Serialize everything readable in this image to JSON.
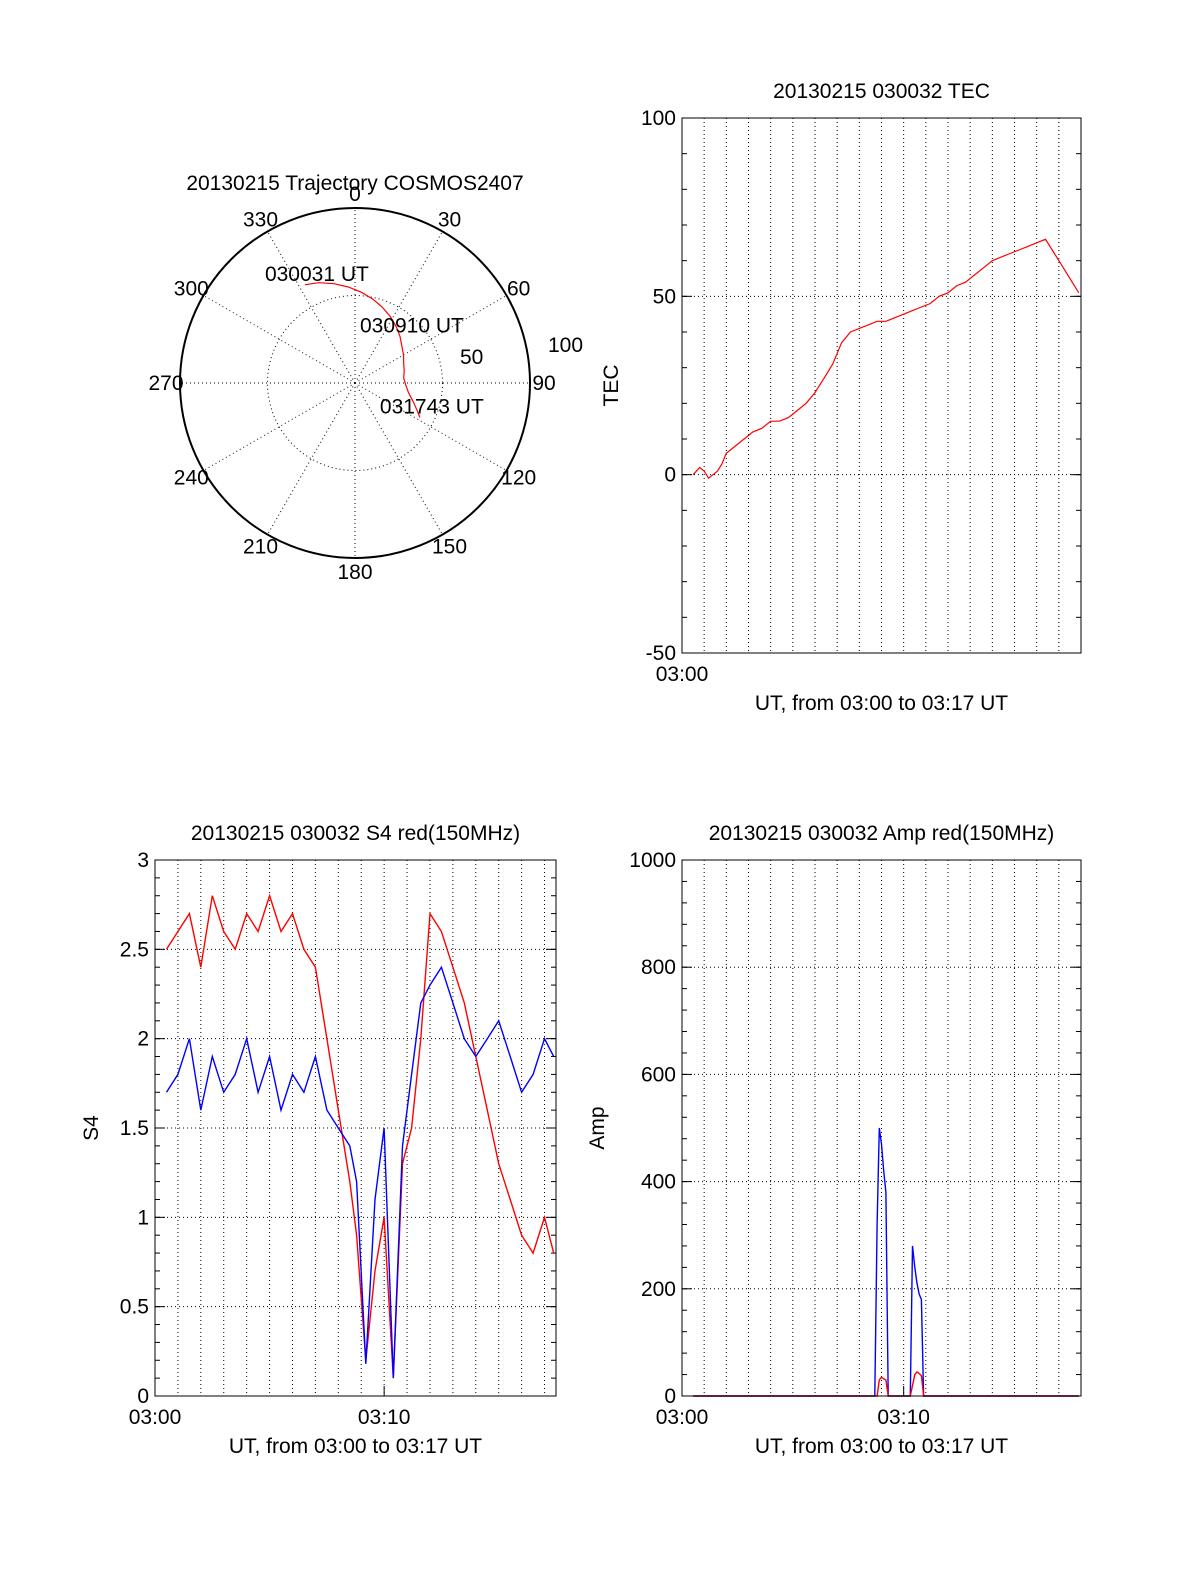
{
  "chart_data": [
    {
      "type": "polar",
      "title": "20130215 Trajectory COSMOS2407",
      "azimuth_labels": [
        "0",
        "30",
        "60",
        "90",
        "120",
        "150",
        "180",
        "210",
        "240",
        "270",
        "300",
        "330"
      ],
      "radial_labels": [
        "50",
        "100"
      ],
      "rlim": [
        0,
        100
      ],
      "grid": true,
      "series": [
        {
          "color": "#ff0000",
          "points": [
            [
              333,
              63
            ],
            [
              340,
              61
            ],
            [
              348,
              58
            ],
            [
              356,
              55
            ],
            [
              4,
              52
            ],
            [
              12,
              49
            ],
            [
              20,
              46
            ],
            [
              28,
              43
            ],
            [
              36,
              40
            ],
            [
              44,
              37
            ],
            [
              52,
              34
            ],
            [
              60,
              32
            ],
            [
              68,
              30
            ],
            [
              76,
              29
            ],
            [
              84,
              28
            ],
            [
              92,
              29
            ],
            [
              100,
              31
            ],
            [
              108,
              35
            ],
            [
              114,
              39
            ],
            [
              118,
              42
            ]
          ]
        }
      ],
      "annotations": [
        {
          "text": "030031 UT",
          "az": 333,
          "r": 63
        },
        {
          "text": "030910 UT",
          "az": 44,
          "r": 37
        },
        {
          "text": "031743 UT",
          "az": 118,
          "r": 42
        }
      ]
    },
    {
      "type": "line",
      "title": "20130215 030032 TEC",
      "xlabel": "UT, from 03:00 to 03:17 UT",
      "ylabel": "TEC",
      "xlim": [
        0,
        18
      ],
      "ylim": [
        -50,
        100
      ],
      "yticks": [
        -50,
        0,
        50,
        100
      ],
      "xtick_labels": [
        {
          "x": 0,
          "label": "03:00"
        }
      ],
      "grid": true,
      "series": [
        {
          "color": "#ff0000",
          "x": [
            0.5,
            0.8,
            1.0,
            1.2,
            1.4,
            1.6,
            1.8,
            2.0,
            2.4,
            2.8,
            3.2,
            3.6,
            4.0,
            4.4,
            4.8,
            5.2,
            5.6,
            6.0,
            6.4,
            6.8,
            7.2,
            7.6,
            8.0,
            8.4,
            8.8,
            9.2,
            9.6,
            10.0,
            10.4,
            10.8,
            11.2,
            11.6,
            12.0,
            12.4,
            12.8,
            13.2,
            13.6,
            14.0,
            14.4,
            14.8,
            15.2,
            15.6,
            16.0,
            16.4,
            16.8,
            17.2,
            17.6,
            17.9
          ],
          "y": [
            0,
            2,
            1,
            -1,
            0,
            1,
            3,
            6,
            8,
            10,
            12,
            13,
            15,
            15,
            16,
            18,
            20,
            23,
            27,
            31,
            37,
            40,
            41,
            42,
            43,
            43,
            44,
            45,
            46,
            47,
            48,
            50,
            51,
            53,
            54,
            56,
            58,
            60,
            61,
            62,
            63,
            64,
            65,
            66,
            62,
            58,
            54,
            51
          ]
        }
      ]
    },
    {
      "type": "line",
      "title": "20130215 030032 S4 red(150MHz)",
      "xlabel": "UT, from 03:00 to 03:17 UT",
      "ylabel": "S4",
      "xlim": [
        0,
        17.5
      ],
      "ylim": [
        0,
        3
      ],
      "yticks": [
        0,
        0.5,
        1,
        1.5,
        2,
        2.5,
        3
      ],
      "xtick_labels": [
        {
          "x": 0,
          "label": "03:00"
        },
        {
          "x": 10,
          "label": "03:10"
        }
      ],
      "grid": true,
      "series": [
        {
          "color": "#ff0000",
          "x": [
            0.5,
            1,
            1.5,
            2,
            2.5,
            3,
            3.5,
            4,
            4.5,
            5,
            5.5,
            6,
            6.5,
            7,
            7.5,
            8,
            8.5,
            8.8,
            9.2,
            9.6,
            10,
            10.4,
            10.8,
            11.2,
            11.6,
            12,
            12.5,
            13,
            13.5,
            14,
            14.5,
            15,
            15.5,
            16,
            16.5,
            17,
            17.4
          ],
          "y": [
            2.5,
            2.6,
            2.7,
            2.4,
            2.8,
            2.6,
            2.5,
            2.7,
            2.6,
            2.8,
            2.6,
            2.7,
            2.5,
            2.4,
            2.0,
            1.6,
            1.2,
            0.9,
            0.2,
            0.7,
            1.0,
            0.1,
            1.3,
            1.5,
            2.0,
            2.7,
            2.6,
            2.4,
            2.2,
            1.9,
            1.6,
            1.3,
            1.1,
            0.9,
            0.8,
            1.0,
            0.8
          ]
        },
        {
          "color": "#0000ff",
          "x": [
            0.5,
            1,
            1.5,
            2,
            2.5,
            3,
            3.5,
            4,
            4.5,
            5,
            5.5,
            6,
            6.5,
            7,
            7.5,
            8,
            8.5,
            8.8,
            9.2,
            9.6,
            10,
            10.4,
            10.8,
            11.2,
            11.6,
            12,
            12.5,
            13,
            13.5,
            14,
            14.5,
            15,
            15.5,
            16,
            16.5,
            17,
            17.4
          ],
          "y": [
            1.7,
            1.8,
            2.0,
            1.6,
            1.9,
            1.7,
            1.8,
            2.0,
            1.7,
            1.9,
            1.6,
            1.8,
            1.7,
            1.9,
            1.6,
            1.5,
            1.4,
            1.2,
            0.18,
            1.1,
            1.5,
            0.1,
            1.4,
            1.8,
            2.2,
            2.3,
            2.4,
            2.2,
            2.0,
            1.9,
            2.0,
            2.1,
            1.9,
            1.7,
            1.8,
            2.0,
            1.9
          ]
        }
      ]
    },
    {
      "type": "line",
      "title": "20130215 030032 Amp red(150MHz)",
      "xlabel": "UT, from 03:00 to 03:17 UT",
      "ylabel": "Amp",
      "xlim": [
        0,
        18
      ],
      "ylim": [
        0,
        1000
      ],
      "yticks": [
        0,
        200,
        400,
        600,
        800,
        1000
      ],
      "xtick_labels": [
        {
          "x": 0,
          "label": "03:00"
        },
        {
          "x": 10,
          "label": "03:10"
        }
      ],
      "grid": true,
      "series": [
        {
          "color": "#0000ff",
          "x": [
            0.5,
            8.5,
            8.7,
            8.8,
            8.9,
            9.0,
            9.1,
            9.2,
            9.3,
            9.6,
            10.3,
            10.4,
            10.5,
            10.6,
            10.7,
            10.8,
            10.9,
            11.2,
            17.9
          ],
          "y": [
            0,
            0,
            0,
            320,
            500,
            470,
            420,
            380,
            0,
            0,
            0,
            280,
            240,
            210,
            190,
            180,
            0,
            0,
            0
          ]
        },
        {
          "color": "#ff0000",
          "x": [
            0.5,
            8.5,
            8.8,
            8.9,
            9.0,
            9.1,
            9.2,
            9.3,
            9.6,
            10.3,
            10.5,
            10.6,
            10.7,
            10.8,
            10.9,
            11.2,
            17.9
          ],
          "y": [
            0,
            0,
            0,
            30,
            35,
            32,
            30,
            0,
            0,
            0,
            40,
            45,
            42,
            38,
            0,
            0,
            0
          ]
        }
      ]
    }
  ]
}
